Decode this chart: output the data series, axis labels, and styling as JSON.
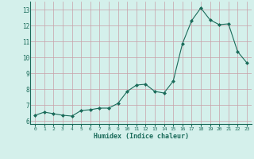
{
  "x": [
    0,
    1,
    2,
    3,
    4,
    5,
    6,
    7,
    8,
    9,
    10,
    11,
    12,
    13,
    14,
    15,
    16,
    17,
    18,
    19,
    20,
    21,
    22,
    23
  ],
  "y": [
    6.35,
    6.55,
    6.45,
    6.35,
    6.3,
    6.65,
    6.7,
    6.8,
    6.8,
    7.1,
    7.85,
    8.25,
    8.3,
    7.85,
    7.75,
    8.5,
    10.85,
    12.3,
    13.1,
    12.35,
    12.05,
    12.1,
    10.35,
    9.65
  ],
  "xlim": [
    -0.5,
    23.5
  ],
  "ylim": [
    5.8,
    13.5
  ],
  "yticks": [
    6,
    7,
    8,
    9,
    10,
    11,
    12,
    13
  ],
  "xticks": [
    0,
    1,
    2,
    3,
    4,
    5,
    6,
    7,
    8,
    9,
    10,
    11,
    12,
    13,
    14,
    15,
    16,
    17,
    18,
    19,
    20,
    21,
    22,
    23
  ],
  "xlabel": "Humidex (Indice chaleur)",
  "line_color": "#1a6b5a",
  "marker_color": "#1a6b5a",
  "bg_color": "#d4f0eb",
  "grid_color_major": "#b8ddd8",
  "grid_color_minor": "#cceae5",
  "axis_color": "#1a6b5a",
  "figsize": [
    3.2,
    2.0
  ],
  "dpi": 100
}
